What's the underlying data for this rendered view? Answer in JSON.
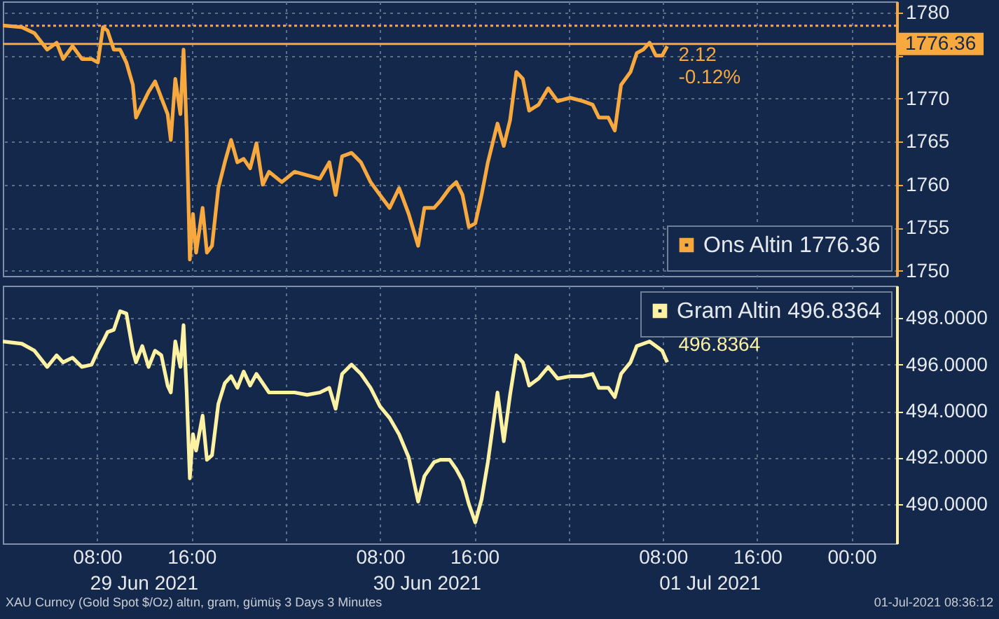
{
  "chart_data": [
    {
      "type": "line",
      "x": [
        "2021-06-29T00:00",
        "2021-06-29T01:37",
        "2021-06-29T02:41",
        "2021-06-29T03:46",
        "2021-06-29T04:34",
        "2021-06-29T05:07",
        "2021-06-29T05:55",
        "2021-06-29T06:43",
        "2021-06-29T07:32",
        "2021-06-29T08:04",
        "2021-06-29T08:30",
        "2021-06-29T08:53",
        "2021-06-29T09:25",
        "2021-06-29T09:57",
        "2021-06-29T10:29",
        "2021-06-29T11:02",
        "2021-06-29T11:18",
        "2021-06-29T11:50",
        "2021-06-29T12:22",
        "2021-06-29T12:55",
        "2021-06-29T13:27",
        "2021-06-29T13:59",
        "2021-06-29T14:15",
        "2021-06-29T14:38",
        "2021-06-29T15:04",
        "2021-06-29T15:20",
        "2021-06-29T15:36",
        "2021-06-29T15:52",
        "2021-06-29T16:08",
        "2021-06-29T16:24",
        "2021-06-29T16:57",
        "2021-06-29T17:19",
        "2021-06-29T17:45",
        "2021-06-29T18:17",
        "2021-06-29T18:50",
        "2021-06-29T19:22",
        "2021-06-29T19:54",
        "2021-06-29T20:26",
        "2021-06-29T20:59",
        "2021-06-29T21:31",
        "2021-06-29T22:03",
        "2021-06-29T22:35",
        "2021-06-29T23:40",
        "2021-06-30T00:45",
        "2021-06-30T01:49",
        "2021-06-30T02:54",
        "2021-06-30T03:42",
        "2021-06-30T04:14",
        "2021-06-30T04:47",
        "2021-06-30T05:35",
        "2021-06-30T06:23",
        "2021-06-30T07:12",
        "2021-06-30T08:00",
        "2021-06-30T08:49",
        "2021-06-30T09:37",
        "2021-06-30T10:26",
        "2021-06-30T11:14",
        "2021-06-30T11:46",
        "2021-06-30T12:35",
        "2021-06-30T13:07",
        "2021-06-30T13:55",
        "2021-06-30T14:28",
        "2021-06-30T15:00",
        "2021-06-30T15:32",
        "2021-06-30T16:05",
        "2021-06-30T16:37",
        "2021-06-30T17:09",
        "2021-06-30T17:58",
        "2021-06-30T18:30",
        "2021-06-30T19:02",
        "2021-06-30T19:34",
        "2021-06-30T20:07",
        "2021-06-30T20:39",
        "2021-06-30T21:27",
        "2021-06-30T22:16",
        "2021-06-30T23:04",
        "2021-07-01T00:08",
        "2021-07-01T01:13",
        "2021-07-01T02:02",
        "2021-07-01T02:34",
        "2021-07-01T03:22",
        "2021-07-01T03:55",
        "2021-07-01T04:27",
        "2021-07-01T05:15",
        "2021-07-01T05:47",
        "2021-07-01T06:20",
        "2021-07-01T06:52",
        "2021-07-01T07:24",
        "2021-07-01T07:56",
        "2021-07-01T08:22"
      ],
      "series": [
        {
          "name": "Ons Altin 1776.36",
          "color": "#f7a940",
          "values": [
            1778.5,
            1778.3,
            1777.6,
            1775.7,
            1776.5,
            1774.6,
            1776.1,
            1774.6,
            1774.6,
            1774.2,
            1778.3,
            1777.9,
            1775.7,
            1775.7,
            1774.2,
            1771.6,
            1767.8,
            1769.3,
            1770.8,
            1772.0,
            1770.1,
            1768.2,
            1765.2,
            1772.3,
            1768.2,
            1775.7,
            1766.3,
            1751.3,
            1756.6,
            1752.1,
            1757.3,
            1752.1,
            1752.9,
            1759.6,
            1762.6,
            1765.2,
            1762.6,
            1763.0,
            1761.9,
            1764.8,
            1760.0,
            1761.5,
            1760.3,
            1761.5,
            1761.1,
            1760.7,
            1762.6,
            1758.8,
            1763.3,
            1763.7,
            1762.6,
            1760.3,
            1758.8,
            1757.3,
            1759.6,
            1756.6,
            1752.9,
            1757.3,
            1757.3,
            1758.1,
            1759.6,
            1760.3,
            1758.8,
            1755.1,
            1755.5,
            1758.8,
            1762.6,
            1767.1,
            1764.5,
            1767.5,
            1773.1,
            1772.3,
            1768.6,
            1769.3,
            1771.2,
            1769.7,
            1770.1,
            1769.7,
            1769.3,
            1767.8,
            1767.8,
            1766.3,
            1771.6,
            1773.1,
            1775.3,
            1775.7,
            1776.5,
            1775.0,
            1775.0,
            1776.1
          ]
        }
      ],
      "xlim": [
        "2021-06-29T00:00",
        "2021-07-02T03:50"
      ],
      "xticks": [
        {
          "value": "2021-06-29T08:00",
          "label": null
        },
        {
          "value": "2021-06-29T16:00",
          "label": null
        },
        {
          "value": "2021-06-30T00:00",
          "label": null
        },
        {
          "value": "2021-06-30T08:00",
          "label": null
        },
        {
          "value": "2021-06-30T16:00",
          "label": null
        },
        {
          "value": "2021-07-01T00:00",
          "label": null
        },
        {
          "value": "2021-07-01T08:00",
          "label": null
        },
        {
          "value": "2021-07-01T16:00",
          "label": null
        },
        {
          "value": "2021-07-02T00:00",
          "label": null
        }
      ],
      "ylim": [
        1749.4,
        1781.3
      ],
      "yticks": [
        1750,
        1755,
        1760,
        1765,
        1770,
        {
          "value": 1775,
          "label": null
        },
        1780
      ],
      "tick_labels": "y",
      "grid": true,
      "legend": "bottom right",
      "ref_lines": [
        {
          "axis": "y",
          "value": 1778.48,
          "label": null,
          "color": "#f7a940",
          "line_style": "dotted"
        },
        {
          "axis": "y",
          "value": 1776.36,
          "label": "1776.36",
          "color": "#f7a940",
          "line_style": "solid"
        }
      ],
      "annotations": [
        {
          "text": "2.12",
          "x": "2021-07-01T08:22",
          "y": 1775.0
        },
        "-0.12%"
      ]
    },
    {
      "type": "line",
      "x": [
        "2021-06-29T00:00",
        "2021-06-29T01:37",
        "2021-06-29T02:41",
        "2021-06-29T03:46",
        "2021-06-29T04:34",
        "2021-06-29T05:07",
        "2021-06-29T05:55",
        "2021-06-29T06:43",
        "2021-06-29T07:32",
        "2021-06-29T08:04",
        "2021-06-29T08:30",
        "2021-06-29T08:53",
        "2021-06-29T09:25",
        "2021-06-29T09:57",
        "2021-06-29T10:29",
        "2021-06-29T11:02",
        "2021-06-29T11:18",
        "2021-06-29T11:50",
        "2021-06-29T12:22",
        "2021-06-29T12:55",
        "2021-06-29T13:27",
        "2021-06-29T13:59",
        "2021-06-29T14:15",
        "2021-06-29T14:38",
        "2021-06-29T15:04",
        "2021-06-29T15:20",
        "2021-06-29T15:36",
        "2021-06-29T15:52",
        "2021-06-29T16:08",
        "2021-06-29T16:24",
        "2021-06-29T16:57",
        "2021-06-29T17:19",
        "2021-06-29T17:45",
        "2021-06-29T18:17",
        "2021-06-29T18:50",
        "2021-06-29T19:22",
        "2021-06-29T19:54",
        "2021-06-29T20:26",
        "2021-06-29T20:59",
        "2021-06-29T21:31",
        "2021-06-29T22:03",
        "2021-06-29T22:35",
        "2021-06-29T23:40",
        "2021-06-30T00:45",
        "2021-06-30T01:49",
        "2021-06-30T02:54",
        "2021-06-30T03:42",
        "2021-06-30T04:14",
        "2021-06-30T04:47",
        "2021-06-30T05:35",
        "2021-06-30T06:23",
        "2021-06-30T07:12",
        "2021-06-30T08:00",
        "2021-06-30T08:49",
        "2021-06-30T09:37",
        "2021-06-30T10:26",
        "2021-06-30T11:14",
        "2021-06-30T11:46",
        "2021-06-30T12:35",
        "2021-06-30T13:07",
        "2021-06-30T13:55",
        "2021-06-30T14:28",
        "2021-06-30T15:00",
        "2021-06-30T15:32",
        "2021-06-30T16:05",
        "2021-06-30T16:37",
        "2021-06-30T17:09",
        "2021-06-30T17:58",
        "2021-06-30T18:30",
        "2021-06-30T19:02",
        "2021-06-30T19:34",
        "2021-06-30T20:07",
        "2021-06-30T20:39",
        "2021-06-30T21:27",
        "2021-06-30T22:16",
        "2021-06-30T23:04",
        "2021-07-01T00:08",
        "2021-07-01T01:13",
        "2021-07-01T02:02",
        "2021-07-01T02:34",
        "2021-07-01T03:22",
        "2021-07-01T03:55",
        "2021-07-01T04:27",
        "2021-07-01T05:15",
        "2021-07-01T05:47",
        "2021-07-01T06:20",
        "2021-07-01T06:52",
        "2021-07-01T07:24",
        "2021-07-01T07:56",
        "2021-07-01T08:22"
      ],
      "series": [
        {
          "name": "Gram Altin 496.8364",
          "color": "#fdf1a4",
          "values": [
            497.0,
            496.9,
            496.6,
            495.9,
            496.4,
            496.1,
            496.3,
            495.9,
            496.0,
            496.6,
            497.0,
            497.4,
            497.5,
            498.3,
            498.2,
            496.6,
            496.1,
            496.8,
            495.9,
            496.6,
            496.4,
            495.1,
            494.8,
            497.0,
            495.9,
            497.7,
            494.8,
            491.1,
            493.0,
            492.3,
            493.8,
            491.9,
            492.1,
            494.3,
            495.2,
            495.5,
            495.0,
            495.7,
            495.1,
            495.6,
            495.2,
            494.8,
            494.8,
            494.8,
            494.7,
            494.8,
            495.0,
            494.1,
            495.6,
            496.0,
            495.6,
            495.0,
            494.2,
            493.7,
            493.0,
            492.0,
            490.1,
            491.2,
            491.8,
            491.9,
            491.9,
            491.5,
            491.0,
            490.0,
            489.2,
            490.2,
            491.8,
            494.8,
            492.7,
            494.7,
            496.4,
            496.1,
            495.1,
            495.4,
            495.9,
            495.4,
            495.5,
            495.5,
            495.6,
            495.0,
            495.0,
            494.6,
            495.6,
            496.1,
            496.8,
            496.9,
            497.0,
            496.8,
            496.6,
            496.1
          ]
        }
      ],
      "xlim": [
        "2021-06-29T00:00",
        "2021-07-02T03:50"
      ],
      "xticks": [
        {
          "value": "2021-06-29T08:00",
          "label": "08:00"
        },
        {
          "value": "2021-06-29T16:00",
          "label": "16:00"
        },
        {
          "value": "2021-06-30T00:00",
          "label": null
        },
        {
          "value": "2021-06-30T08:00",
          "label": "08:00"
        },
        {
          "value": "2021-06-30T16:00",
          "label": "16:00"
        },
        {
          "value": "2021-07-01T00:00",
          "label": null
        },
        {
          "value": "2021-07-01T08:00",
          "label": "08:00"
        },
        {
          "value": "2021-07-01T16:00",
          "label": "16:00"
        },
        {
          "value": "2021-07-02T00:00",
          "label": "00:00"
        }
      ],
      "ylim": [
        488.3,
        499.4
      ],
      "yticks": [
        {
          "value": 490,
          "label": "490.0000"
        },
        {
          "value": 492,
          "label": "492.0000"
        },
        {
          "value": 494,
          "label": "494.0000"
        },
        {
          "value": 496,
          "label": "496.0000"
        },
        {
          "value": 498,
          "label": "498.0000"
        }
      ],
      "grid": true,
      "legend": "top right",
      "annotations": [
        "29 Jun 2021",
        "30 Jun 2021",
        "01 Jul 2021",
        "XAU Curncy (Gold Spot  $/Oz) altın, gram, gümüş 3 Days 3 Minutes",
        "01-Jul-2021 08:36:12",
        {
          "text": "496.8364",
          "x": "2021-07-01T08:22",
          "y": 496.8364
        }
      ]
    }
  ]
}
